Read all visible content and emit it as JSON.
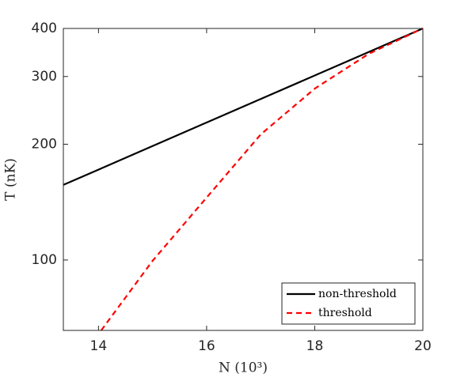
{
  "chart_data": {
    "type": "line",
    "xlabel": "N (10³)",
    "ylabel": "T (nK)",
    "xlim": [
      13.35,
      20
    ],
    "xticks": [
      14,
      16,
      18,
      20
    ],
    "ylim": [
      65.6,
      400
    ],
    "yticks": [
      100,
      200,
      300,
      400
    ],
    "ylog": true,
    "legend": "lower right",
    "series": [
      {
        "name": "non-threshold",
        "color": "#000000",
        "dash": false,
        "x": [
          13.35,
          14,
          15,
          16,
          17,
          18,
          19,
          20
        ],
        "values": [
          156.8,
          171.8,
          197.8,
          227.8,
          262.2,
          301.8,
          347.5,
          400
        ]
      },
      {
        "name": "threshold",
        "color": "#ff0000",
        "dash": true,
        "x": [
          14.05,
          15,
          16,
          17,
          18,
          19,
          20
        ],
        "values": [
          65.6,
          99.5,
          145.3,
          212,
          279,
          343.7,
          400
        ]
      }
    ]
  }
}
